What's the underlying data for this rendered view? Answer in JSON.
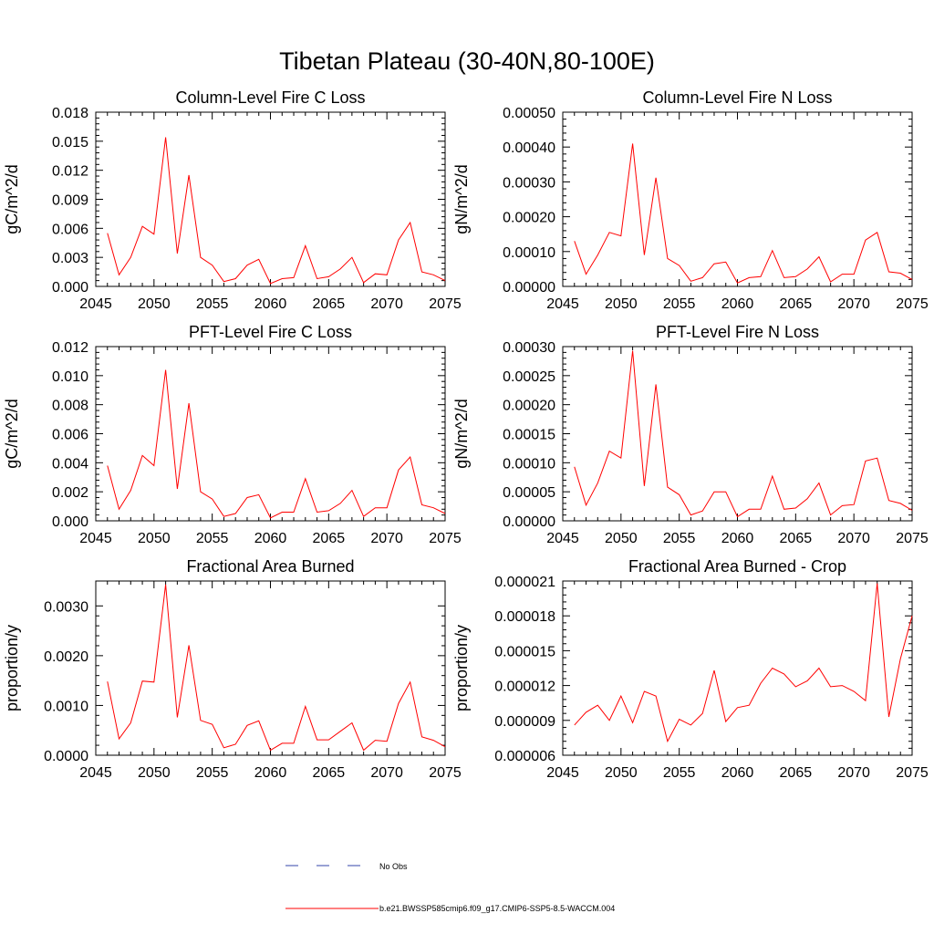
{
  "chart_data": {
    "title": "Tibetan Plateau (30-40N,80-100E)",
    "type": "line",
    "legend": [
      {
        "label": "No Obs",
        "color": "#3344aa",
        "style": "dashed"
      },
      {
        "label": "b.e21.BWSSP585cmip6.f09_g17.CMIP6-SSP5-8.5-WACCM.004",
        "color": "#ff0000",
        "style": "solid"
      }
    ],
    "panels": [
      {
        "title": "Column-Level Fire C Loss",
        "ylabel": "gC/m^2/d",
        "xlim": [
          2045,
          2075
        ],
        "xticks": [
          "2045",
          "2050",
          "2055",
          "2060",
          "2065",
          "2070",
          "2075"
        ],
        "ylim": [
          0,
          0.018
        ],
        "yticks": [
          "0.000",
          "0.003",
          "0.006",
          "0.009",
          "0.012",
          "0.015",
          "0.018"
        ],
        "x": [
          2046,
          2047,
          2048,
          2049,
          2050,
          2051,
          2052,
          2053,
          2054,
          2055,
          2056,
          2057,
          2058,
          2059,
          2060,
          2061,
          2062,
          2063,
          2064,
          2065,
          2066,
          2067,
          2068,
          2069,
          2070,
          2071,
          2072,
          2073,
          2074,
          2075
        ],
        "values": [
          0.0055,
          0.0012,
          0.003,
          0.0062,
          0.0054,
          0.0154,
          0.0034,
          0.0115,
          0.003,
          0.0022,
          0.0005,
          0.0008,
          0.0022,
          0.0028,
          0.0003,
          0.0008,
          0.0009,
          0.0042,
          0.0008,
          0.001,
          0.0018,
          0.003,
          0.0004,
          0.0013,
          0.0012,
          0.0048,
          0.0066,
          0.0015,
          0.0012,
          0.0006
        ]
      },
      {
        "title": "Column-Level Fire N Loss",
        "ylabel": "gN/m^2/d",
        "xlim": [
          2045,
          2075
        ],
        "xticks": [
          "2045",
          "2050",
          "2055",
          "2060",
          "2065",
          "2070",
          "2075"
        ],
        "ylim": [
          0,
          0.0005
        ],
        "yticks": [
          "0.00000",
          "0.00010",
          "0.00020",
          "0.00030",
          "0.00040",
          "0.00050"
        ],
        "x": [
          2046,
          2047,
          2048,
          2049,
          2050,
          2051,
          2052,
          2053,
          2054,
          2055,
          2056,
          2057,
          2058,
          2059,
          2060,
          2061,
          2062,
          2063,
          2064,
          2065,
          2066,
          2067,
          2068,
          2069,
          2070,
          2071,
          2072,
          2073,
          2074,
          2075
        ],
        "values": [
          0.00013,
          3.5e-05,
          9e-05,
          0.000155,
          0.000145,
          0.00041,
          9e-05,
          0.000312,
          8e-05,
          6e-05,
          1.5e-05,
          2.5e-05,
          6.5e-05,
          7e-05,
          1e-05,
          2.5e-05,
          2.8e-05,
          0.000103,
          2.5e-05,
          2.8e-05,
          5e-05,
          8.5e-05,
          1.3e-05,
          3.5e-05,
          3.5e-05,
          0.000133,
          0.000155,
          4.2e-05,
          3.8e-05,
          2e-05
        ]
      },
      {
        "title": "PFT-Level Fire C Loss",
        "ylabel": "gC/m^2/d",
        "xlim": [
          2045,
          2075
        ],
        "xticks": [
          "2045",
          "2050",
          "2055",
          "2060",
          "2065",
          "2070",
          "2075"
        ],
        "ylim": [
          0,
          0.012
        ],
        "yticks": [
          "0.000",
          "0.002",
          "0.004",
          "0.006",
          "0.008",
          "0.010",
          "0.012"
        ],
        "x": [
          2046,
          2047,
          2048,
          2049,
          2050,
          2051,
          2052,
          2053,
          2054,
          2055,
          2056,
          2057,
          2058,
          2059,
          2060,
          2061,
          2062,
          2063,
          2064,
          2065,
          2066,
          2067,
          2068,
          2069,
          2070,
          2071,
          2072,
          2073,
          2074,
          2075
        ],
        "values": [
          0.0038,
          0.0008,
          0.0021,
          0.0045,
          0.0038,
          0.0104,
          0.0022,
          0.0081,
          0.002,
          0.0015,
          0.0003,
          0.0005,
          0.0016,
          0.0018,
          0.0002,
          0.0006,
          0.0006,
          0.0029,
          0.0006,
          0.0007,
          0.0012,
          0.0021,
          0.0003,
          0.0009,
          0.0009,
          0.0035,
          0.0044,
          0.0011,
          0.0009,
          0.0005
        ]
      },
      {
        "title": "PFT-Level Fire N Loss",
        "ylabel": "gN/m^2/d",
        "xlim": [
          2045,
          2075
        ],
        "xticks": [
          "2045",
          "2050",
          "2055",
          "2060",
          "2065",
          "2070",
          "2075"
        ],
        "ylim": [
          0,
          0.0003
        ],
        "yticks": [
          "0.00000",
          "0.00005",
          "0.00010",
          "0.00015",
          "0.00020",
          "0.00025",
          "0.00030"
        ],
        "x": [
          2046,
          2047,
          2048,
          2049,
          2050,
          2051,
          2052,
          2053,
          2054,
          2055,
          2056,
          2057,
          2058,
          2059,
          2060,
          2061,
          2062,
          2063,
          2064,
          2065,
          2066,
          2067,
          2068,
          2069,
          2070,
          2071,
          2072,
          2073,
          2074,
          2075
        ],
        "values": [
          9.3e-05,
          2.7e-05,
          6.5e-05,
          0.00012,
          0.000108,
          0.000293,
          6e-05,
          0.000235,
          5.8e-05,
          4.5e-05,
          1e-05,
          1.7e-05,
          5e-05,
          5e-05,
          7e-06,
          2e-05,
          2e-05,
          7.7e-05,
          2e-05,
          2.2e-05,
          3.8e-05,
          6.5e-05,
          1e-05,
          2.6e-05,
          2.8e-05,
          0.000103,
          0.000108,
          3.5e-05,
          3e-05,
          1.8e-05
        ]
      },
      {
        "title": "Fractional Area Burned",
        "ylabel": "proportion/y",
        "xlim": [
          2045,
          2075
        ],
        "xticks": [
          "2045",
          "2050",
          "2055",
          "2060",
          "2065",
          "2070",
          "2075"
        ],
        "ylim": [
          0,
          0.0035
        ],
        "yticks": [
          "0.0000",
          "0.0010",
          "0.0020",
          "0.0030"
        ],
        "ytick_values": [
          0,
          0.001,
          0.002,
          0.003
        ],
        "x": [
          2046,
          2047,
          2048,
          2049,
          2050,
          2051,
          2052,
          2053,
          2054,
          2055,
          2056,
          2057,
          2058,
          2059,
          2060,
          2061,
          2062,
          2063,
          2064,
          2065,
          2066,
          2067,
          2068,
          2069,
          2070,
          2071,
          2072,
          2073,
          2074,
          2075
        ],
        "values": [
          0.00148,
          0.00033,
          0.00065,
          0.00149,
          0.00147,
          0.00343,
          0.00076,
          0.00221,
          0.0007,
          0.00062,
          0.00015,
          0.00022,
          0.0006,
          0.00069,
          0.0001,
          0.00024,
          0.00024,
          0.00098,
          0.00031,
          0.00031,
          0.00048,
          0.00065,
          0.0001,
          0.0003,
          0.00028,
          0.00104,
          0.00147,
          0.00037,
          0.0003,
          0.00017
        ]
      },
      {
        "title": "Fractional Area Burned - Crop",
        "ylabel": "proportion/y",
        "xlim": [
          2045,
          2075
        ],
        "xticks": [
          "2045",
          "2050",
          "2055",
          "2060",
          "2065",
          "2070",
          "2075"
        ],
        "ylim": [
          6e-06,
          2.1e-05
        ],
        "yticks": [
          "0.000006",
          "0.000009",
          "0.000012",
          "0.000015",
          "0.000018",
          "0.000021"
        ],
        "x": [
          2046,
          2047,
          2048,
          2049,
          2050,
          2051,
          2052,
          2053,
          2054,
          2055,
          2056,
          2057,
          2058,
          2059,
          2060,
          2061,
          2062,
          2063,
          2064,
          2065,
          2066,
          2067,
          2068,
          2069,
          2070,
          2071,
          2072,
          2073,
          2074,
          2075
        ],
        "values": [
          8.6e-06,
          9.7e-06,
          1.03e-05,
          9e-06,
          1.11e-05,
          8.8e-06,
          1.15e-05,
          1.11e-05,
          7.2e-06,
          9.1e-06,
          8.6e-06,
          9.6e-06,
          1.33e-05,
          8.9e-06,
          1.01e-05,
          1.03e-05,
          1.22e-05,
          1.35e-05,
          1.3e-05,
          1.19e-05,
          1.24e-05,
          1.35e-05,
          1.19e-05,
          1.2e-05,
          1.15e-05,
          1.07e-05,
          2.08e-05,
          9.3e-06,
          1.43e-05,
          1.8e-05
        ]
      }
    ]
  }
}
